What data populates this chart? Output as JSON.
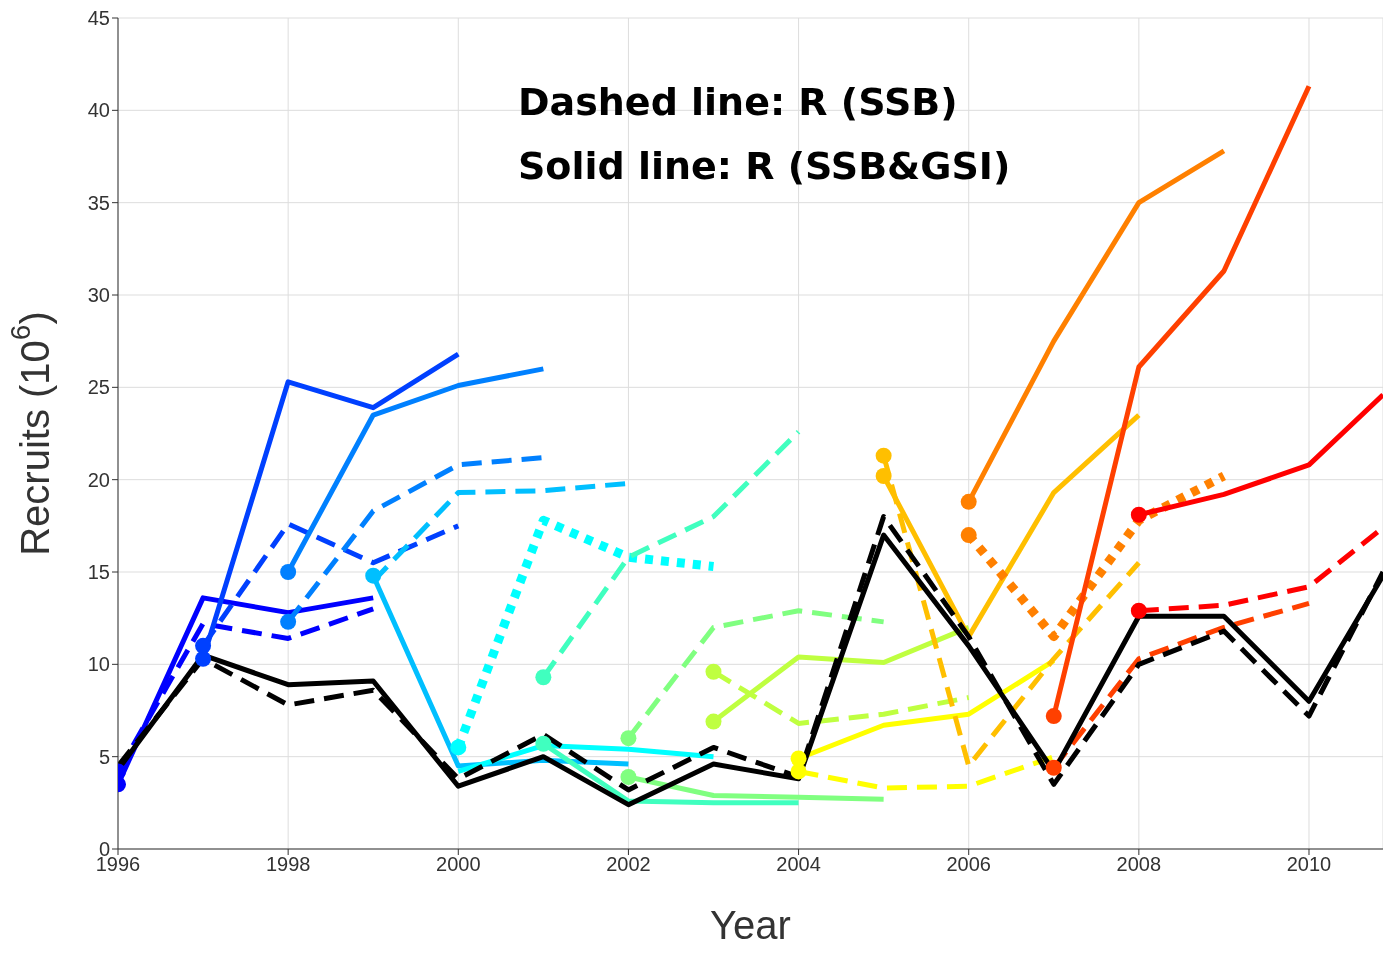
{
  "chart_data": {
    "type": "line",
    "xlabel": "Year",
    "ylabel": "Recruits (10$^{6}$)",
    "annotations": [
      "Dashed line: R (SSB)",
      "Solid line: R (SSB&GSI)"
    ],
    "xlim": [
      1996,
      2010.87
    ],
    "xticks": [
      1996,
      1998,
      2000,
      2002,
      2004,
      2006,
      2008,
      2010
    ],
    "ylim": [
      0,
      45
    ],
    "yticks": [
      0,
      5,
      10,
      15,
      20,
      25,
      30,
      35,
      40,
      45
    ],
    "grid": true,
    "series": [
      {
        "color": "#0000ff",
        "line_style": "solid",
        "x": [
          1996,
          1997,
          1998,
          1999
        ],
        "values": [
          3.5,
          13.6,
          12.8,
          13.6
        ]
      },
      {
        "color": "#0000ff",
        "line_style": "dashed",
        "x": [
          1996,
          1997,
          1998,
          1999
        ],
        "values": [
          4.2,
          12.2,
          11.4,
          13.0
        ]
      },
      {
        "color": "#0040ff",
        "line_style": "solid",
        "x": [
          1997,
          1998,
          1999,
          2000
        ],
        "values": [
          10.3,
          25.3,
          23.9,
          26.8
        ]
      },
      {
        "color": "#0040ff",
        "line_style": "dashed",
        "x": [
          1997,
          1998,
          1999,
          2000
        ],
        "values": [
          11.0,
          17.6,
          15.5,
          17.5
        ]
      },
      {
        "color": "#0080ff",
        "line_style": "solid",
        "x": [
          1998,
          1999,
          2000,
          2001
        ],
        "values": [
          15.0,
          23.5,
          25.1,
          26.0
        ]
      },
      {
        "color": "#0080ff",
        "line_style": "dashed",
        "x": [
          1998,
          1999,
          2000,
          2001
        ],
        "values": [
          12.3,
          18.3,
          20.8,
          21.2
        ]
      },
      {
        "color": "#00bfff",
        "line_style": "solid",
        "x": [
          1999,
          2000,
          2001,
          2002
        ],
        "values": [
          14.8,
          4.5,
          4.8,
          4.6
        ]
      },
      {
        "color": "#00bfff",
        "line_style": "dashed",
        "x": [
          1999,
          2000,
          2001,
          2002
        ],
        "values": [
          14.5,
          19.3,
          19.4,
          19.8
        ]
      },
      {
        "color": "#00ffff",
        "line_style": "solid",
        "x": [
          2000,
          2001,
          2002,
          2003
        ],
        "values": [
          4.2,
          5.6,
          5.4,
          5.0
        ]
      },
      {
        "color": "#00ffff",
        "line_style": "dotted",
        "x": [
          2000,
          2001,
          2002,
          2003
        ],
        "values": [
          5.5,
          17.8,
          15.8,
          15.3
        ]
      },
      {
        "color": "#40ffbf",
        "line_style": "solid",
        "x": [
          2001,
          2002,
          2003,
          2004
        ],
        "values": [
          5.7,
          2.6,
          2.5,
          2.5
        ]
      },
      {
        "color": "#40ffbf",
        "line_style": "dashed",
        "x": [
          2001,
          2002,
          2003,
          2004
        ],
        "values": [
          9.3,
          15.8,
          18.0,
          22.6
        ]
      },
      {
        "color": "#80ff80",
        "line_style": "solid",
        "x": [
          2002,
          2003,
          2004,
          2005
        ],
        "values": [
          3.9,
          2.9,
          2.8,
          2.7
        ]
      },
      {
        "color": "#80ff80",
        "line_style": "dashed",
        "x": [
          2002,
          2003,
          2004,
          2005
        ],
        "values": [
          6.0,
          12.0,
          12.9,
          12.3
        ]
      },
      {
        "color": "#bfff40",
        "line_style": "solid",
        "x": [
          2003,
          2004,
          2005,
          2006
        ],
        "values": [
          6.9,
          10.4,
          10.1,
          12.0
        ]
      },
      {
        "color": "#bfff40",
        "line_style": "dashed",
        "x": [
          2003,
          2004,
          2005,
          2006
        ],
        "values": [
          9.6,
          6.8,
          7.3,
          8.2
        ]
      },
      {
        "color": "#ffff00",
        "line_style": "solid",
        "x": [
          2004,
          2005,
          2006,
          2007
        ],
        "values": [
          4.9,
          6.7,
          7.3,
          10.2
        ]
      },
      {
        "color": "#ffff00",
        "line_style": "dashed",
        "x": [
          2004,
          2005,
          2006,
          2007
        ],
        "values": [
          4.2,
          3.3,
          3.4,
          5.0
        ]
      },
      {
        "color": "#ffbf00",
        "line_style": "solid",
        "x": [
          2005,
          2006,
          2007,
          2008
        ],
        "values": [
          20.2,
          11.5,
          19.3,
          23.5
        ]
      },
      {
        "color": "#ffbf00",
        "line_style": "dashed",
        "x": [
          2005,
          2006,
          2007,
          2008
        ],
        "values": [
          21.3,
          4.5,
          10.3,
          15.5
        ]
      },
      {
        "color": "#ff8000",
        "line_style": "solid",
        "x": [
          2006,
          2007,
          2008,
          2009
        ],
        "values": [
          18.8,
          27.5,
          35.0,
          37.8
        ]
      },
      {
        "color": "#ff8000",
        "line_style": "dotted",
        "x": [
          2006,
          2007,
          2008,
          2009
        ],
        "values": [
          17.0,
          11.5,
          17.8,
          20.2
        ]
      },
      {
        "color": "#ff4000",
        "line_style": "solid",
        "x": [
          2007,
          2008,
          2009,
          2010
        ],
        "values": [
          7.2,
          26.1,
          31.3,
          41.3
        ]
      },
      {
        "color": "#ff4000",
        "line_style": "dashed",
        "x": [
          2007,
          2008,
          2009,
          2010
        ],
        "values": [
          4.4,
          10.3,
          12.0,
          13.3
        ]
      },
      {
        "color": "#ff0000",
        "line_style": "solid",
        "x": [
          2008,
          2009,
          2010,
          2010.87
        ],
        "values": [
          18.1,
          19.2,
          20.8,
          24.6
        ]
      },
      {
        "color": "#ff0000",
        "line_style": "dashed",
        "x": [
          2008,
          2009,
          2010,
          2010.87
        ],
        "values": [
          12.9,
          13.2,
          14.2,
          17.4
        ]
      },
      {
        "type": "scatter",
        "marker": "circle",
        "x": [
          1996,
          1996,
          1997,
          1997,
          1998,
          1998,
          1999,
          2000,
          2001,
          2001,
          2002,
          2002,
          2003,
          2003,
          2004,
          2004,
          2005,
          2005,
          2006,
          2006,
          2007,
          2007,
          2008,
          2008
        ],
        "values": [
          3.5,
          4.2,
          10.3,
          11.0,
          15.0,
          12.3,
          14.8,
          5.5,
          9.3,
          5.7,
          6.0,
          3.9,
          9.6,
          6.9,
          4.9,
          4.2,
          21.3,
          20.2,
          18.8,
          17.0,
          7.2,
          4.4,
          18.1,
          12.9
        ],
        "colors": [
          "#0000ff",
          "#0000ff",
          "#0040ff",
          "#0040ff",
          "#0080ff",
          "#0080ff",
          "#00bfff",
          "#00ffff",
          "#40ffbf",
          "#40ffbf",
          "#80ff80",
          "#80ff80",
          "#bfff40",
          "#bfff40",
          "#ffff00",
          "#ffff00",
          "#ffbf00",
          "#ffbf00",
          "#ff8000",
          "#ff8000",
          "#ff4000",
          "#ff4000",
          "#ff0000",
          "#ff0000"
        ]
      },
      {
        "color": "#000000",
        "line_style": "solid",
        "x": [
          1996,
          1997,
          1998,
          1999,
          2000,
          2001,
          2002,
          2003,
          2004,
          2005,
          2006,
          2007,
          2008,
          2009,
          2010,
          2010.87
        ],
        "values": [
          4.3,
          10.5,
          8.9,
          9.1,
          3.4,
          5.0,
          2.4,
          4.6,
          3.8,
          17.0,
          11.0,
          4.2,
          12.6,
          12.6,
          8.0,
          14.8
        ]
      },
      {
        "color": "#000000",
        "line_style": "dashed",
        "x": [
          1996,
          1997,
          1998,
          1999,
          2000,
          2001,
          2002,
          2003,
          2004,
          2005,
          2006,
          2007,
          2008,
          2009,
          2010,
          2010.87
        ],
        "values": [
          4.5,
          10.3,
          7.8,
          8.6,
          3.8,
          6.2,
          3.2,
          5.5,
          3.9,
          18.0,
          11.5,
          3.5,
          10.0,
          11.8,
          7.2,
          15.0
        ]
      }
    ]
  }
}
